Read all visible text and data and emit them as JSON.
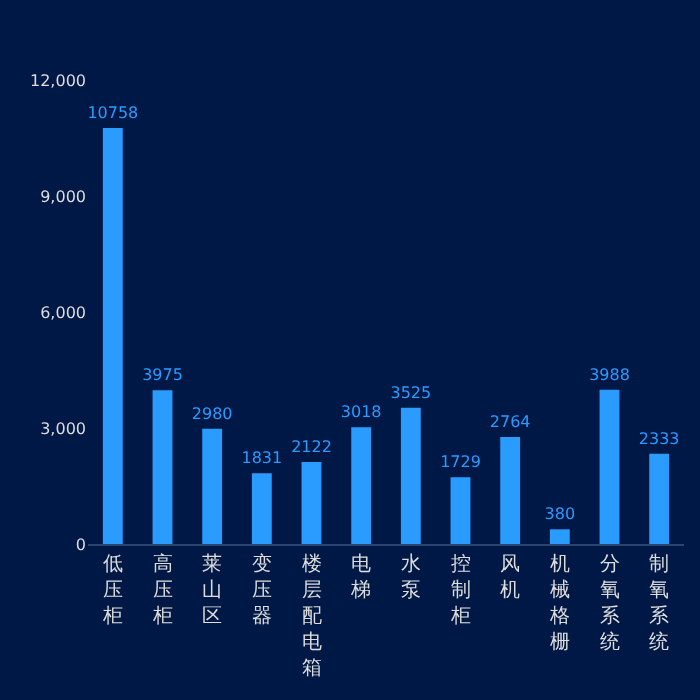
{
  "chart_data": {
    "type": "bar",
    "categories": [
      "低压柜",
      "高压柜",
      "莱山区",
      "变压器",
      "楼层配电箱",
      "电梯",
      "水泵",
      "控制柜",
      "风机",
      "机械格栅",
      "分氧系统",
      "制氧系统"
    ],
    "values": [
      10758,
      3975,
      2980,
      1831,
      2122,
      3018,
      3525,
      1729,
      2764,
      380,
      3988,
      2333
    ],
    "color": "#2a9bff",
    "ylim": [
      0,
      12000
    ],
    "yticks": [
      0,
      {
        "value": 3000,
        "label": "3,000"
      },
      {
        "value": 6000,
        "label": "6,000"
      },
      {
        "value": 9000,
        "label": "9,000"
      },
      {
        "value": 12000,
        "label": "12,000"
      }
    ],
    "data_labels": true,
    "grid": false,
    "legend": false
  }
}
